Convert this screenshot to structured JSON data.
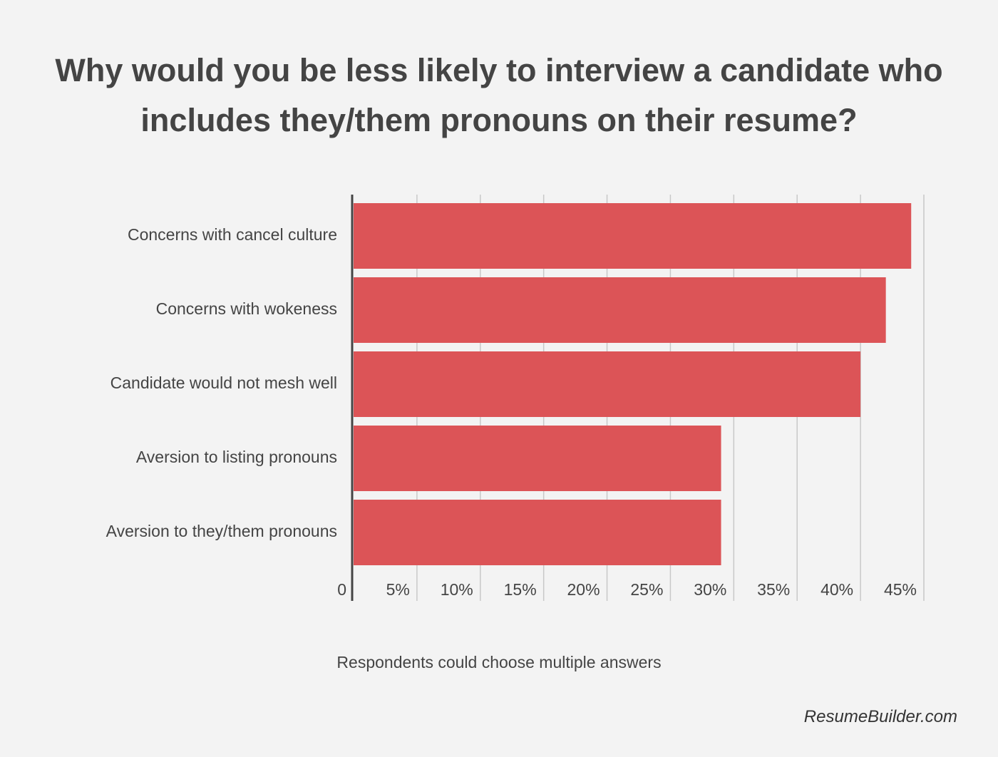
{
  "chart_data": {
    "type": "barh",
    "title": "Why would you be less likely to interview a candidate who includes they/them pronouns on their resume?",
    "categories": [
      "Concerns with cancel culture",
      "Concerns with wokeness",
      "Candidate would not mesh well",
      "Aversion to listing pronouns",
      "Aversion to they/them pronouns"
    ],
    "values": [
      44,
      42,
      40,
      29,
      29
    ],
    "color": "#dc5457",
    "xlim": [
      0,
      45
    ],
    "xticks": [
      0,
      {
        "value": 5,
        "label": "5%"
      },
      {
        "value": 10,
        "label": "10%"
      },
      {
        "value": 15,
        "label": "15%"
      },
      {
        "value": 20,
        "label": "20%"
      },
      {
        "value": 25,
        "label": "25%"
      },
      {
        "value": 30,
        "label": "30%"
      },
      {
        "value": 35,
        "label": "35%"
      },
      {
        "value": 40,
        "label": "40%"
      },
      {
        "value": 45,
        "label": "45%"
      }
    ],
    "grid": true,
    "note": "Respondents could choose multiple answers",
    "source": "ResumeBuilder.com"
  }
}
